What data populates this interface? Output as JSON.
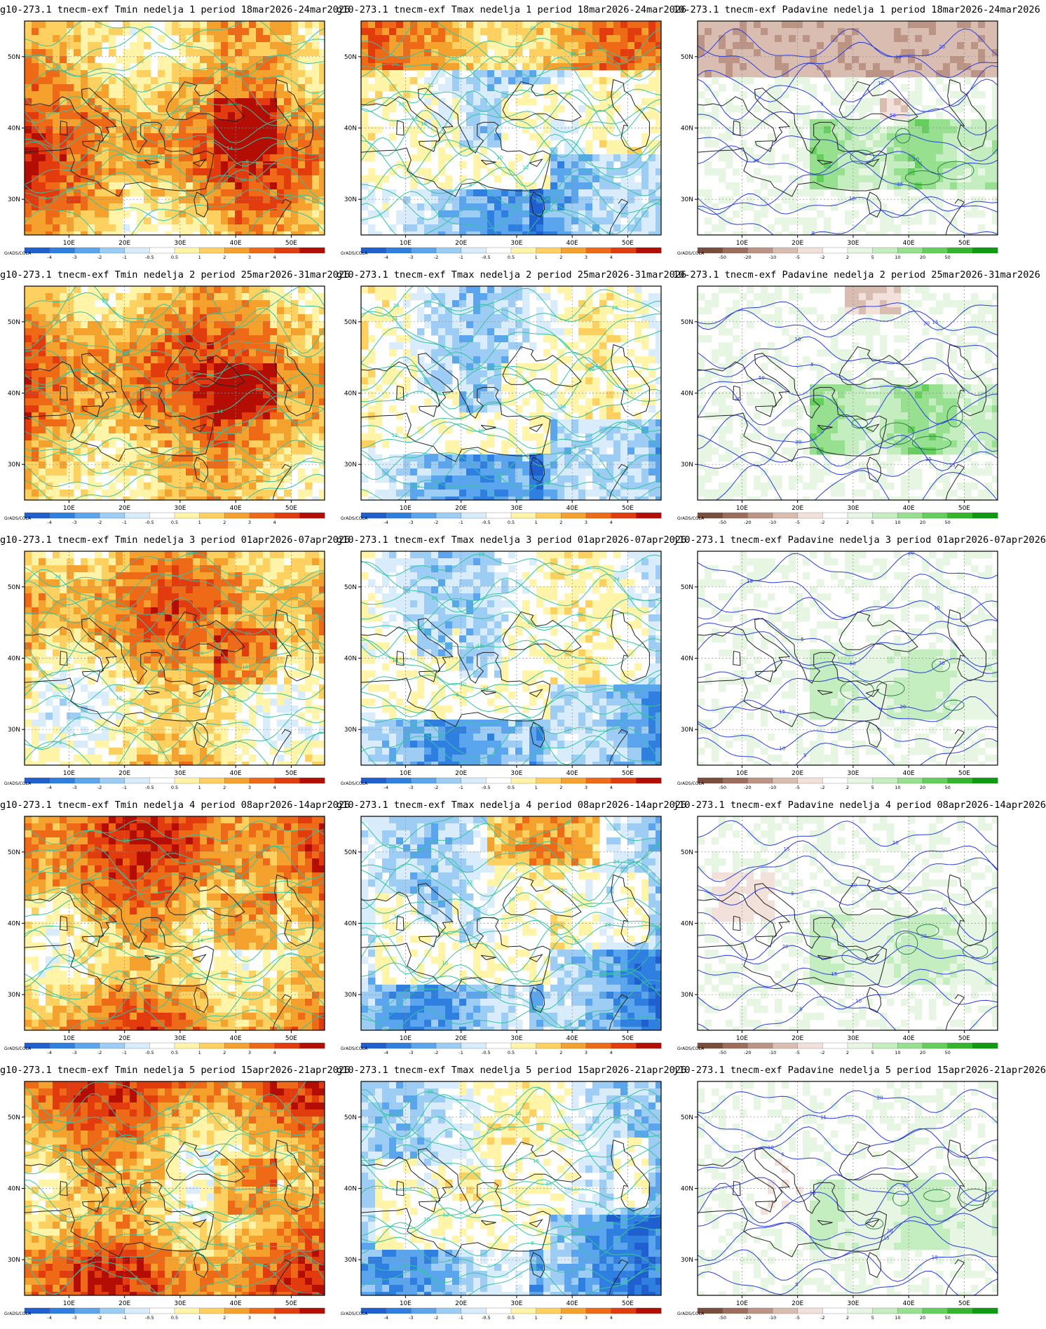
{
  "colors": {
    "temp_scale": [
      "#1f5fcf",
      "#2f7fe0",
      "#5aa5ee",
      "#9dccf5",
      "#d8ecfb",
      "#ffffff",
      "#fff4a8",
      "#fdd060",
      "#f5a12e",
      "#ee6a17",
      "#e23b0e",
      "#b40e04"
    ],
    "precip_scale": [
      "#7a4e3c",
      "#9c6d5b",
      "#bb9485",
      "#d9bdb1",
      "#f1e1da",
      "#ffffff",
      "#e6f6e3",
      "#c5eec0",
      "#97e08f",
      "#64cf5c",
      "#35b52e",
      "#0f9a12"
    ],
    "contour_temp": "#36c3a0",
    "contour_precip": "#2b3de0",
    "coast": "#222222",
    "border": "#9a9a9a"
  },
  "legend_label": "GrADS/COLA",
  "panels": [
    {
      "title": "g10-273.1 tnecm-exf Tmin nedelja 1 period 18mar2026-24mar2026",
      "var": "tmin",
      "week": 1
    },
    {
      "title": "g10-273.1 tnecm-exf Tmax nedelja 1 period 18mar2026-24mar2026",
      "var": "tmax",
      "week": 1
    },
    {
      "title": "10-273.1 tnecm-exf Padavine nedelja 1 period 18mar2026-24mar2026",
      "var": "prec",
      "week": 1
    },
    {
      "title": "g10-273.1 tnecm-exf Tmin nedelja 2 period 25mar2026-31mar2026",
      "var": "tmin",
      "week": 2
    },
    {
      "title": "g10-273.1 tnecm-exf Tmax nedelja 2 period 25mar2026-31mar2026",
      "var": "tmax",
      "week": 2
    },
    {
      "title": "10-273.1 tnecm-exf Padavine nedelja 2 period 25mar2026-31mar2026",
      "var": "prec",
      "week": 2
    },
    {
      "title": "g10-273.1 tnecm-exf Tmin nedelja 3 period 01apr2026-07apr2026",
      "var": "tmin",
      "week": 3
    },
    {
      "title": "g10-273.1 tnecm-exf Tmax nedelja 3 period 01apr2026-07apr2026",
      "var": "tmax",
      "week": 3
    },
    {
      "title": "j10-273.1 tnecm-exf Padavine nedelja 3 period 01apr2026-07apr2026",
      "var": "prec",
      "week": 3
    },
    {
      "title": "g10-273.1 tnecm-exf Tmin nedelja 4 period 08apr2026-14apr2026",
      "var": "tmin",
      "week": 4
    },
    {
      "title": "g10-273.1 tnecm-exf Tmax nedelja 4 period 08apr2026-14apr2026",
      "var": "tmax",
      "week": 4
    },
    {
      "title": "j10-273.1 tnecm-exf Padavine nedelja 4 period 08apr2026-14apr2026",
      "var": "prec",
      "week": 4
    },
    {
      "title": "g10-273.1 tnecm-exf Tmin nedelja 5 period 15apr2026-21apr2026",
      "var": "tmin",
      "week": 5
    },
    {
      "title": "g10-273.1 tnecm-exf Tmax nedelja 5 period 15apr2026-21apr2026",
      "var": "tmax",
      "week": 5
    },
    {
      "title": "j10-273.1 tnecm-exf Padavine nedelja 5 period 15apr2026-21apr2026",
      "var": "prec",
      "week": 5
    }
  ],
  "chart_data": {
    "type": "heatmap",
    "x_ticks": [
      "10E",
      "20E",
      "30E",
      "40E",
      "50E"
    ],
    "y_ticks": [
      "30N",
      "40N",
      "50N"
    ],
    "x_range_deg_e": [
      2,
      56
    ],
    "y_range_deg_n": [
      25,
      55
    ],
    "grid": true,
    "temp_legend_ticks": [
      "-4",
      "-3",
      "-2",
      "-1",
      "-0.5",
      "0.5",
      "1",
      "2",
      "3",
      "4"
    ],
    "precip_legend_ticks": [
      "-50",
      "-20",
      "-10",
      "-5",
      "-2",
      "2",
      "5",
      "10",
      "20",
      "50"
    ],
    "contour_labels_temp": [
      "2",
      "4",
      "6",
      "8",
      "10",
      "12",
      "14",
      "16",
      "18",
      "20",
      "22",
      "24",
      "26",
      "28",
      "30",
      "32"
    ],
    "contour_labels_precip": [
      "5",
      "10",
      "15",
      "20",
      "30",
      "50"
    ]
  }
}
